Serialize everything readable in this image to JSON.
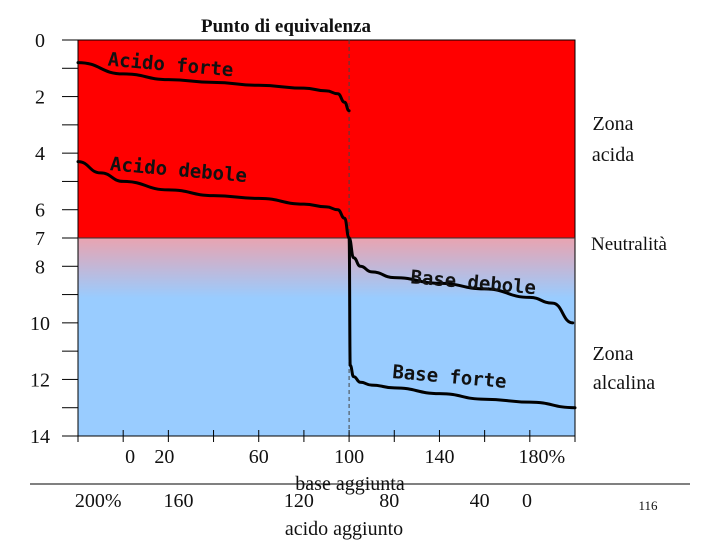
{
  "chart_data": {
    "type": "line",
    "title": "Punto di equivalenza",
    "ylim": [
      0,
      14
    ],
    "y_axis_reversed": true,
    "y_tick_labels": [
      "0",
      "2",
      "4",
      "6",
      "7",
      "8",
      "10",
      "12",
      "14"
    ],
    "y_tick_values": [
      0,
      2,
      4,
      6,
      7,
      8,
      10,
      12,
      14
    ],
    "x_top_label": "base aggiunta",
    "x_top_ticks": [
      "0",
      "20",
      "60",
      "100",
      "140",
      "180%"
    ],
    "x_top_values": [
      0,
      20,
      60,
      100,
      140,
      180
    ],
    "x_bottom_label": "acido aggiunto",
    "x_bottom_ticks": [
      "200%",
      "160",
      "120",
      "80",
      "40",
      "0"
    ],
    "x_bottom_values": [
      200,
      160,
      120,
      80,
      40,
      0
    ],
    "xlim": [
      -20,
      200
    ],
    "equivalence_x": 100,
    "neutral_ph": 7,
    "zones": {
      "acid": {
        "label_line1": "Zona",
        "label_line2": "acida",
        "color": "#ff0000"
      },
      "neutral": {
        "label": "Neutralità"
      },
      "alkaline": {
        "label_line1": "Zona",
        "label_line2": "alcalina",
        "color": "#99ccff"
      }
    },
    "series": [
      {
        "name": "Acido forte",
        "x": [
          -20,
          0,
          20,
          40,
          60,
          80,
          90,
          95,
          98,
          100
        ],
        "y": [
          0.8,
          1.2,
          1.4,
          1.5,
          1.6,
          1.7,
          1.8,
          1.9,
          2.2,
          2.5
        ]
      },
      {
        "name": "Acido debole",
        "x": [
          -20,
          -10,
          0,
          20,
          40,
          60,
          80,
          90,
          95,
          98,
          100
        ],
        "y": [
          4.3,
          4.7,
          5.0,
          5.3,
          5.5,
          5.6,
          5.8,
          5.9,
          6.0,
          6.3,
          7.0
        ]
      },
      {
        "name": "Base debole",
        "x": [
          100,
          102,
          105,
          110,
          120,
          140,
          160,
          180,
          190,
          199
        ],
        "y": [
          7.0,
          7.7,
          8.0,
          8.2,
          8.4,
          8.6,
          8.8,
          9.1,
          9.3,
          10.0
        ]
      },
      {
        "name": "Base forte",
        "x": [
          100,
          100.5,
          102,
          105,
          110,
          120,
          140,
          160,
          180,
          200
        ],
        "y": [
          7.0,
          11.5,
          11.9,
          12.1,
          12.2,
          12.3,
          12.5,
          12.7,
          12.8,
          13.0
        ]
      }
    ],
    "curve_labels": [
      {
        "text": "Acido forte",
        "series": "Acido forte"
      },
      {
        "text": "Acido debole",
        "series": "Acido debole"
      },
      {
        "text": "Base debole",
        "series": "Base debole"
      },
      {
        "text": "Base forte",
        "series": "Base forte"
      }
    ]
  },
  "page_number": "116"
}
